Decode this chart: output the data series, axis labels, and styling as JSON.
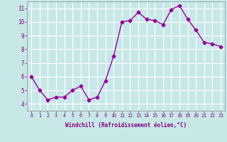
{
  "x": [
    0,
    1,
    2,
    3,
    4,
    5,
    6,
    7,
    8,
    9,
    10,
    11,
    12,
    13,
    14,
    15,
    16,
    17,
    18,
    19,
    20,
    21,
    22,
    23
  ],
  "y": [
    6.0,
    5.0,
    4.3,
    4.5,
    4.5,
    5.0,
    5.3,
    4.3,
    4.5,
    5.7,
    7.5,
    10.0,
    10.1,
    10.7,
    10.2,
    10.1,
    9.8,
    10.9,
    11.2,
    10.2,
    9.4,
    8.5,
    8.4,
    8.2
  ],
  "line_color": "#990099",
  "marker": "D",
  "marker_size": 2.5,
  "bg_color": "#c8e8e8",
  "grid_color": "#ffffff",
  "xlabel": "Windchill (Refroidissement éolien,°C)",
  "xlabel_color": "#800080",
  "tick_label_color": "#800080",
  "xlim": [
    -0.5,
    23.5
  ],
  "ylim": [
    3.5,
    11.5
  ],
  "yticks": [
    4,
    5,
    6,
    7,
    8,
    9,
    10,
    11
  ],
  "xticks": [
    0,
    1,
    2,
    3,
    4,
    5,
    6,
    7,
    8,
    9,
    10,
    11,
    12,
    13,
    14,
    15,
    16,
    17,
    18,
    19,
    20,
    21,
    22,
    23
  ]
}
